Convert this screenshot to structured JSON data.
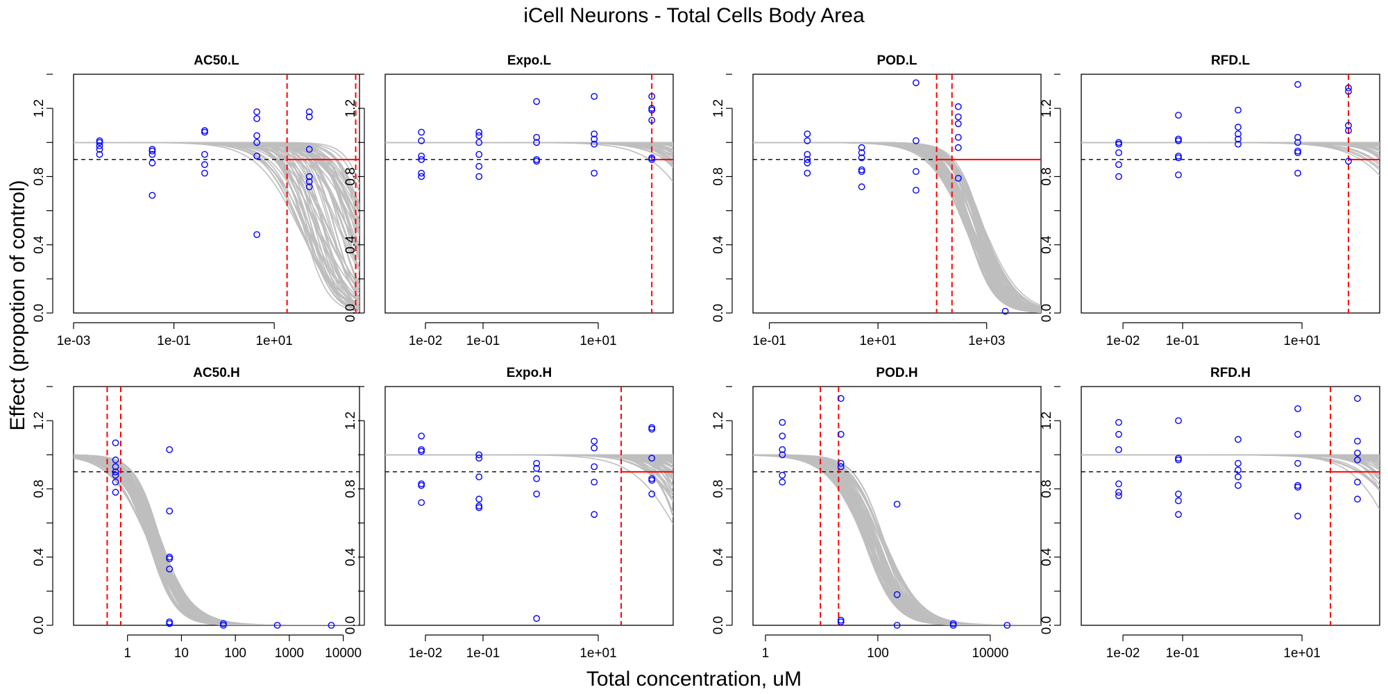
{
  "figure": {
    "title": "iCell Neurons -  Total Cells Body Area",
    "xlabel": "Total concentration, uM",
    "ylabel": "Effect (propotion of control)"
  },
  "colors": {
    "points": "#0000ff",
    "curves": "#bebebe",
    "threshold": "#000000",
    "marker": "#ff0000"
  },
  "chart_data": [
    {
      "type": "scatter",
      "title": "AC50.L",
      "xscale": "log10",
      "xlim": [
        0.001,
        500
      ],
      "ylim": [
        0,
        1.4
      ],
      "xticks": [
        0.001,
        0.1,
        10
      ],
      "xtick_labels": [
        "1e-03",
        "1e-01",
        "1e+01"
      ],
      "yticks": [
        0,
        0.4,
        0.8,
        1.2
      ],
      "ytick_labels": [
        "0.0",
        "0.4",
        "0.8",
        "1.2"
      ],
      "threshold_y": 0.9,
      "vlines": [
        18,
        420
      ],
      "hline_from_x": 18,
      "curves": {
        "top": 1.0,
        "ac50_range": [
          30,
          900
        ],
        "hill_range": [
          1.0,
          2.0
        ]
      },
      "points": [
        {
          "x": 0.0033,
          "y": 1.01
        },
        {
          "x": 0.0033,
          "y": 1.0
        },
        {
          "x": 0.0033,
          "y": 0.98
        },
        {
          "x": 0.0033,
          "y": 0.96
        },
        {
          "x": 0.0033,
          "y": 0.93
        },
        {
          "x": 0.037,
          "y": 0.96
        },
        {
          "x": 0.037,
          "y": 0.95
        },
        {
          "x": 0.037,
          "y": 0.93
        },
        {
          "x": 0.037,
          "y": 0.88
        },
        {
          "x": 0.037,
          "y": 0.69
        },
        {
          "x": 0.41,
          "y": 1.07
        },
        {
          "x": 0.41,
          "y": 1.06
        },
        {
          "x": 0.41,
          "y": 0.93
        },
        {
          "x": 0.41,
          "y": 0.87
        },
        {
          "x": 0.41,
          "y": 0.82
        },
        {
          "x": 4.5,
          "y": 1.18
        },
        {
          "x": 4.5,
          "y": 1.14
        },
        {
          "x": 4.5,
          "y": 1.04
        },
        {
          "x": 4.5,
          "y": 1.0
        },
        {
          "x": 4.5,
          "y": 0.92
        },
        {
          "x": 4.5,
          "y": 0.46
        },
        {
          "x": 50,
          "y": 1.18
        },
        {
          "x": 50,
          "y": 1.15
        },
        {
          "x": 50,
          "y": 0.96
        },
        {
          "x": 50,
          "y": 0.8
        },
        {
          "x": 50,
          "y": 0.77
        },
        {
          "x": 50,
          "y": 0.74
        }
      ]
    },
    {
      "type": "scatter",
      "title": "Expo.L",
      "xscale": "log10",
      "xlim": [
        0.002,
        200
      ],
      "ylim": [
        0,
        1.4
      ],
      "xticks": [
        0.01,
        0.1,
        10
      ],
      "xtick_labels": [
        "1e-02",
        "1e-01",
        "1e+01"
      ],
      "yticks": [
        0,
        0.4,
        0.8,
        1.2
      ],
      "ytick_labels": [
        "0.0",
        "0.4",
        "0.8",
        "1.2"
      ],
      "threshold_y": 0.9,
      "vlines": [
        85
      ],
      "hline_from_x": 85,
      "curves": {
        "top": 1.0,
        "ac50_range": [
          600,
          50000
        ],
        "hill_range": [
          1.0,
          2.0
        ]
      },
      "points": [
        {
          "x": 0.0085,
          "y": 1.06
        },
        {
          "x": 0.0085,
          "y": 1.01
        },
        {
          "x": 0.0085,
          "y": 0.92
        },
        {
          "x": 0.0085,
          "y": 0.9
        },
        {
          "x": 0.0085,
          "y": 0.82
        },
        {
          "x": 0.0085,
          "y": 0.8
        },
        {
          "x": 0.085,
          "y": 1.06
        },
        {
          "x": 0.085,
          "y": 1.04
        },
        {
          "x": 0.085,
          "y": 1.0
        },
        {
          "x": 0.085,
          "y": 0.93
        },
        {
          "x": 0.085,
          "y": 0.86
        },
        {
          "x": 0.085,
          "y": 0.8
        },
        {
          "x": 0.85,
          "y": 1.24
        },
        {
          "x": 0.85,
          "y": 1.03
        },
        {
          "x": 0.85,
          "y": 1.0
        },
        {
          "x": 0.85,
          "y": 0.9
        },
        {
          "x": 0.85,
          "y": 0.89
        },
        {
          "x": 8.5,
          "y": 1.27
        },
        {
          "x": 8.5,
          "y": 1.05
        },
        {
          "x": 8.5,
          "y": 1.02
        },
        {
          "x": 8.5,
          "y": 0.99
        },
        {
          "x": 8.5,
          "y": 0.82
        },
        {
          "x": 85,
          "y": 1.27
        },
        {
          "x": 85,
          "y": 1.2
        },
        {
          "x": 85,
          "y": 1.19
        },
        {
          "x": 85,
          "y": 1.13
        },
        {
          "x": 85,
          "y": 0.91
        },
        {
          "x": 85,
          "y": 0.9
        }
      ]
    },
    {
      "type": "scatter",
      "title": "POD.L",
      "xscale": "log10",
      "xlim": [
        0.05,
        10000
      ],
      "ylim": [
        0,
        1.4
      ],
      "xticks": [
        0.1,
        10,
        1000
      ],
      "xtick_labels": [
        "1e-01",
        "1e+01",
        "1e+03"
      ],
      "yticks": [
        0,
        0.4,
        0.8,
        1.2
      ],
      "ytick_labels": [
        "0.0",
        "0.4",
        "0.8",
        "1.2"
      ],
      "threshold_y": 0.9,
      "vlines": [
        120,
        230
      ],
      "hline_from_x": 120,
      "curves": {
        "top": 1.0,
        "ac50_range": [
          400,
          900
        ],
        "hill_range": [
          1.2,
          1.8
        ]
      },
      "points": [
        {
          "x": 0.5,
          "y": 1.05
        },
        {
          "x": 0.5,
          "y": 1.01
        },
        {
          "x": 0.5,
          "y": 0.93
        },
        {
          "x": 0.5,
          "y": 0.9
        },
        {
          "x": 0.5,
          "y": 0.88
        },
        {
          "x": 0.5,
          "y": 0.82
        },
        {
          "x": 5,
          "y": 0.97
        },
        {
          "x": 5,
          "y": 0.94
        },
        {
          "x": 5,
          "y": 0.91
        },
        {
          "x": 5,
          "y": 0.84
        },
        {
          "x": 5,
          "y": 0.83
        },
        {
          "x": 5,
          "y": 0.74
        },
        {
          "x": 50,
          "y": 1.35
        },
        {
          "x": 50,
          "y": 1.01
        },
        {
          "x": 50,
          "y": 0.83
        },
        {
          "x": 50,
          "y": 0.72
        },
        {
          "x": 300,
          "y": 1.21
        },
        {
          "x": 300,
          "y": 1.15
        },
        {
          "x": 300,
          "y": 1.11
        },
        {
          "x": 300,
          "y": 1.03
        },
        {
          "x": 300,
          "y": 0.97
        },
        {
          "x": 300,
          "y": 0.79
        },
        {
          "x": 2200,
          "y": 0.01
        }
      ]
    },
    {
      "type": "scatter",
      "title": "RFD.L",
      "xscale": "log10",
      "xlim": [
        0.002,
        200
      ],
      "ylim": [
        0,
        1.4
      ],
      "xticks": [
        0.01,
        0.1,
        10
      ],
      "xtick_labels": [
        "1e-02",
        "1e-01",
        "1e+01"
      ],
      "yticks": [
        0,
        0.4,
        0.8,
        1.2
      ],
      "ytick_labels": [
        "0.0",
        "0.4",
        "0.8",
        "1.2"
      ],
      "threshold_y": 0.9,
      "vlines": [
        60
      ],
      "hline_from_x": 60,
      "curves": {
        "top": 1.0,
        "ac50_range": [
          700,
          50000
        ],
        "hill_range": [
          1.0,
          2.0
        ]
      },
      "points": [
        {
          "x": 0.0085,
          "y": 1.0
        },
        {
          "x": 0.0085,
          "y": 0.99
        },
        {
          "x": 0.0085,
          "y": 0.94
        },
        {
          "x": 0.0085,
          "y": 0.87
        },
        {
          "x": 0.0085,
          "y": 0.8
        },
        {
          "x": 0.085,
          "y": 1.16
        },
        {
          "x": 0.085,
          "y": 1.02
        },
        {
          "x": 0.085,
          "y": 1.01
        },
        {
          "x": 0.085,
          "y": 0.92
        },
        {
          "x": 0.085,
          "y": 0.91
        },
        {
          "x": 0.085,
          "y": 0.81
        },
        {
          "x": 0.85,
          "y": 1.19
        },
        {
          "x": 0.85,
          "y": 1.09
        },
        {
          "x": 0.85,
          "y": 1.05
        },
        {
          "x": 0.85,
          "y": 1.02
        },
        {
          "x": 0.85,
          "y": 0.99
        },
        {
          "x": 8.5,
          "y": 1.34
        },
        {
          "x": 8.5,
          "y": 1.03
        },
        {
          "x": 8.5,
          "y": 1.0
        },
        {
          "x": 8.5,
          "y": 0.95
        },
        {
          "x": 8.5,
          "y": 0.94
        },
        {
          "x": 8.5,
          "y": 0.82
        },
        {
          "x": 60,
          "y": 1.32
        },
        {
          "x": 60,
          "y": 1.3
        },
        {
          "x": 60,
          "y": 1.1
        },
        {
          "x": 60,
          "y": 1.07
        },
        {
          "x": 60,
          "y": 0.89
        }
      ]
    },
    {
      "type": "scatter",
      "title": "AC50.H",
      "xscale": "log10",
      "xlim": [
        0.1,
        20000
      ],
      "ylim": [
        0,
        1.4
      ],
      "xticks": [
        1,
        10,
        100,
        1000,
        10000
      ],
      "xtick_labels": [
        "1",
        "10",
        "100",
        "1000",
        "10000"
      ],
      "yticks": [
        0,
        0.4,
        0.8,
        1.2
      ],
      "ytick_labels": [
        "0.0",
        "0.4",
        "0.8",
        "1.2"
      ],
      "threshold_y": 0.9,
      "vlines": [
        0.42,
        0.75
      ],
      "hline_from_x": null,
      "curves": {
        "top": 1.0,
        "ac50_range": [
          2.3,
          4.2
        ],
        "hill_range": [
          1.2,
          1.9
        ]
      },
      "points": [
        {
          "x": 0.6,
          "y": 1.07
        },
        {
          "x": 0.6,
          "y": 0.97
        },
        {
          "x": 0.6,
          "y": 0.93
        },
        {
          "x": 0.6,
          "y": 0.9
        },
        {
          "x": 0.6,
          "y": 0.88
        },
        {
          "x": 0.6,
          "y": 0.84
        },
        {
          "x": 0.6,
          "y": 0.78
        },
        {
          "x": 6,
          "y": 1.03
        },
        {
          "x": 6,
          "y": 0.67
        },
        {
          "x": 6,
          "y": 0.4
        },
        {
          "x": 6,
          "y": 0.39
        },
        {
          "x": 6,
          "y": 0.33
        },
        {
          "x": 6,
          "y": 0.02
        },
        {
          "x": 6,
          "y": 0.01
        },
        {
          "x": 60,
          "y": 0.01
        },
        {
          "x": 60,
          "y": 0.0
        },
        {
          "x": 600,
          "y": 0.0
        },
        {
          "x": 6000,
          "y": 0.0
        }
      ]
    },
    {
      "type": "scatter",
      "title": "Expo.H",
      "xscale": "log10",
      "xlim": [
        0.002,
        200
      ],
      "ylim": [
        0,
        1.4
      ],
      "xticks": [
        0.01,
        0.1,
        10
      ],
      "xtick_labels": [
        "1e-02",
        "1e-01",
        "1e+01"
      ],
      "yticks": [
        0,
        0.4,
        0.8,
        1.2
      ],
      "ytick_labels": [
        "0.0",
        "0.4",
        "0.8",
        "1.2"
      ],
      "threshold_y": 0.9,
      "vlines": [
        25
      ],
      "hline_from_x": 25,
      "curves": {
        "top": 1.0,
        "ac50_range": [
          250,
          30000
        ],
        "hill_range": [
          1.0,
          2.0
        ]
      },
      "points": [
        {
          "x": 0.0085,
          "y": 1.11
        },
        {
          "x": 0.0085,
          "y": 1.03
        },
        {
          "x": 0.0085,
          "y": 1.02
        },
        {
          "x": 0.0085,
          "y": 0.83
        },
        {
          "x": 0.0085,
          "y": 0.82
        },
        {
          "x": 0.0085,
          "y": 0.72
        },
        {
          "x": 0.085,
          "y": 1.0
        },
        {
          "x": 0.085,
          "y": 0.98
        },
        {
          "x": 0.085,
          "y": 0.87
        },
        {
          "x": 0.085,
          "y": 0.74
        },
        {
          "x": 0.085,
          "y": 0.7
        },
        {
          "x": 0.085,
          "y": 0.69
        },
        {
          "x": 0.85,
          "y": 0.95
        },
        {
          "x": 0.85,
          "y": 0.92
        },
        {
          "x": 0.85,
          "y": 0.86
        },
        {
          "x": 0.85,
          "y": 0.77
        },
        {
          "x": 0.85,
          "y": 0.04
        },
        {
          "x": 8.5,
          "y": 1.08
        },
        {
          "x": 8.5,
          "y": 1.04
        },
        {
          "x": 8.5,
          "y": 0.93
        },
        {
          "x": 8.5,
          "y": 0.84
        },
        {
          "x": 8.5,
          "y": 0.65
        },
        {
          "x": 85,
          "y": 1.16
        },
        {
          "x": 85,
          "y": 1.15
        },
        {
          "x": 85,
          "y": 0.98
        },
        {
          "x": 85,
          "y": 0.86
        },
        {
          "x": 85,
          "y": 0.85
        },
        {
          "x": 85,
          "y": 0.77
        }
      ]
    },
    {
      "type": "scatter",
      "title": "POD.H",
      "xscale": "log10",
      "xlim": [
        0.6,
        80000
      ],
      "ylim": [
        0,
        1.4
      ],
      "xticks": [
        1,
        100,
        10000
      ],
      "xtick_labels": [
        "1",
        "100",
        "10000"
      ],
      "yticks": [
        0,
        0.4,
        0.8,
        1.2
      ],
      "ytick_labels": [
        "0.0",
        "0.4",
        "0.8",
        "1.2"
      ],
      "threshold_y": 0.9,
      "vlines": [
        9.5,
        20
      ],
      "hline_from_x": null,
      "curves": {
        "top": 1.0,
        "ac50_range": [
          55,
          130
        ],
        "hill_range": [
          1.2,
          1.7
        ]
      },
      "points": [
        {
          "x": 2,
          "y": 1.19
        },
        {
          "x": 2,
          "y": 1.11
        },
        {
          "x": 2,
          "y": 1.03
        },
        {
          "x": 2,
          "y": 1.0
        },
        {
          "x": 2,
          "y": 0.88
        },
        {
          "x": 2,
          "y": 0.84
        },
        {
          "x": 22,
          "y": 1.33
        },
        {
          "x": 22,
          "y": 1.12
        },
        {
          "x": 22,
          "y": 0.95
        },
        {
          "x": 22,
          "y": 0.93
        },
        {
          "x": 22,
          "y": 0.03
        },
        {
          "x": 22,
          "y": 0.02
        },
        {
          "x": 220,
          "y": 0.71
        },
        {
          "x": 220,
          "y": 0.18
        },
        {
          "x": 220,
          "y": 0.0
        },
        {
          "x": 2200,
          "y": 0.01
        },
        {
          "x": 2200,
          "y": 0.0
        },
        {
          "x": 20000,
          "y": 0.0
        }
      ]
    },
    {
      "type": "scatter",
      "title": "RFD.H",
      "xscale": "log10",
      "xlim": [
        0.002,
        200
      ],
      "ylim": [
        0,
        1.4
      ],
      "xticks": [
        0.01,
        0.1,
        10
      ],
      "xtick_labels": [
        "1e-02",
        "1e-01",
        "1e+01"
      ],
      "yticks": [
        0,
        0.4,
        0.8,
        1.2
      ],
      "ytick_labels": [
        "0.0",
        "0.4",
        "0.8",
        "1.2"
      ],
      "threshold_y": 0.9,
      "vlines": [
        30
      ],
      "hline_from_x": 30,
      "curves": {
        "top": 1.0,
        "ac50_range": [
          350,
          35000
        ],
        "hill_range": [
          1.0,
          2.0
        ]
      },
      "points": [
        {
          "x": 0.0085,
          "y": 1.19
        },
        {
          "x": 0.0085,
          "y": 1.12
        },
        {
          "x": 0.0085,
          "y": 1.03
        },
        {
          "x": 0.0085,
          "y": 0.83
        },
        {
          "x": 0.0085,
          "y": 0.78
        },
        {
          "x": 0.0085,
          "y": 0.76
        },
        {
          "x": 0.085,
          "y": 1.2
        },
        {
          "x": 0.085,
          "y": 0.98
        },
        {
          "x": 0.085,
          "y": 0.97
        },
        {
          "x": 0.085,
          "y": 0.77
        },
        {
          "x": 0.085,
          "y": 0.73
        },
        {
          "x": 0.085,
          "y": 0.65
        },
        {
          "x": 0.85,
          "y": 1.09
        },
        {
          "x": 0.85,
          "y": 0.95
        },
        {
          "x": 0.85,
          "y": 0.91
        },
        {
          "x": 0.85,
          "y": 0.87
        },
        {
          "x": 0.85,
          "y": 0.82
        },
        {
          "x": 8.5,
          "y": 1.27
        },
        {
          "x": 8.5,
          "y": 1.12
        },
        {
          "x": 8.5,
          "y": 0.95
        },
        {
          "x": 8.5,
          "y": 0.82
        },
        {
          "x": 8.5,
          "y": 0.81
        },
        {
          "x": 8.5,
          "y": 0.64
        },
        {
          "x": 85,
          "y": 1.33
        },
        {
          "x": 85,
          "y": 1.08
        },
        {
          "x": 85,
          "y": 1.01
        },
        {
          "x": 85,
          "y": 0.97
        },
        {
          "x": 85,
          "y": 0.84
        },
        {
          "x": 85,
          "y": 0.74
        }
      ]
    }
  ]
}
